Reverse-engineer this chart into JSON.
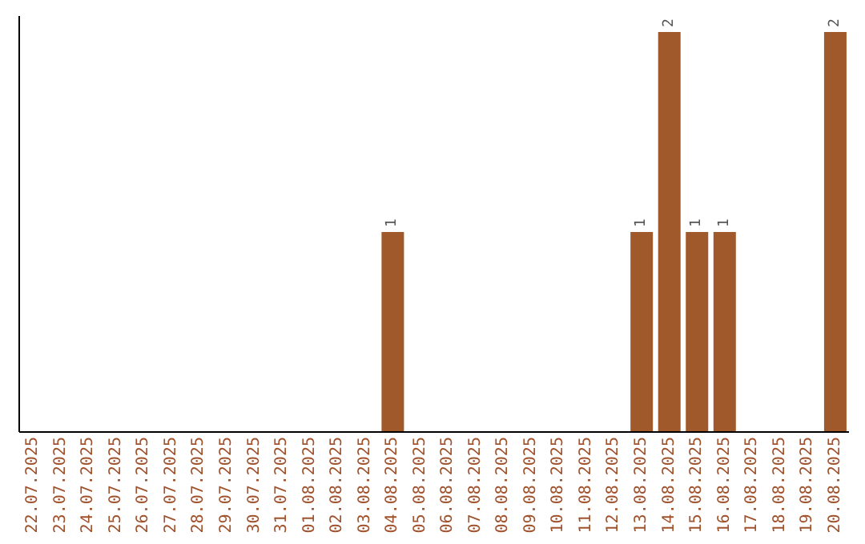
{
  "chart_data": {
    "type": "bar",
    "categories": [
      "22.07.2025",
      "23.07.2025",
      "24.07.2025",
      "25.07.2025",
      "26.07.2025",
      "27.07.2025",
      "28.07.2025",
      "29.07.2025",
      "30.07.2025",
      "31.07.2025",
      "01.08.2025",
      "02.08.2025",
      "03.08.2025",
      "04.08.2025",
      "05.08.2025",
      "06.08.2025",
      "07.08.2025",
      "08.08.2025",
      "09.08.2025",
      "10.08.2025",
      "11.08.2025",
      "12.08.2025",
      "13.08.2025",
      "14.08.2025",
      "15.08.2025",
      "16.08.2025",
      "17.08.2025",
      "18.08.2025",
      "19.08.2025",
      "20.08.2025"
    ],
    "values": [
      null,
      null,
      null,
      null,
      null,
      null,
      null,
      null,
      null,
      null,
      null,
      null,
      null,
      1,
      null,
      null,
      null,
      null,
      null,
      null,
      null,
      null,
      1,
      2,
      1,
      1,
      null,
      null,
      null,
      2
    ],
    "data_labels": true,
    "color": "#a0592a",
    "tick_labels": "x",
    "grid": false,
    "legend": false
  }
}
